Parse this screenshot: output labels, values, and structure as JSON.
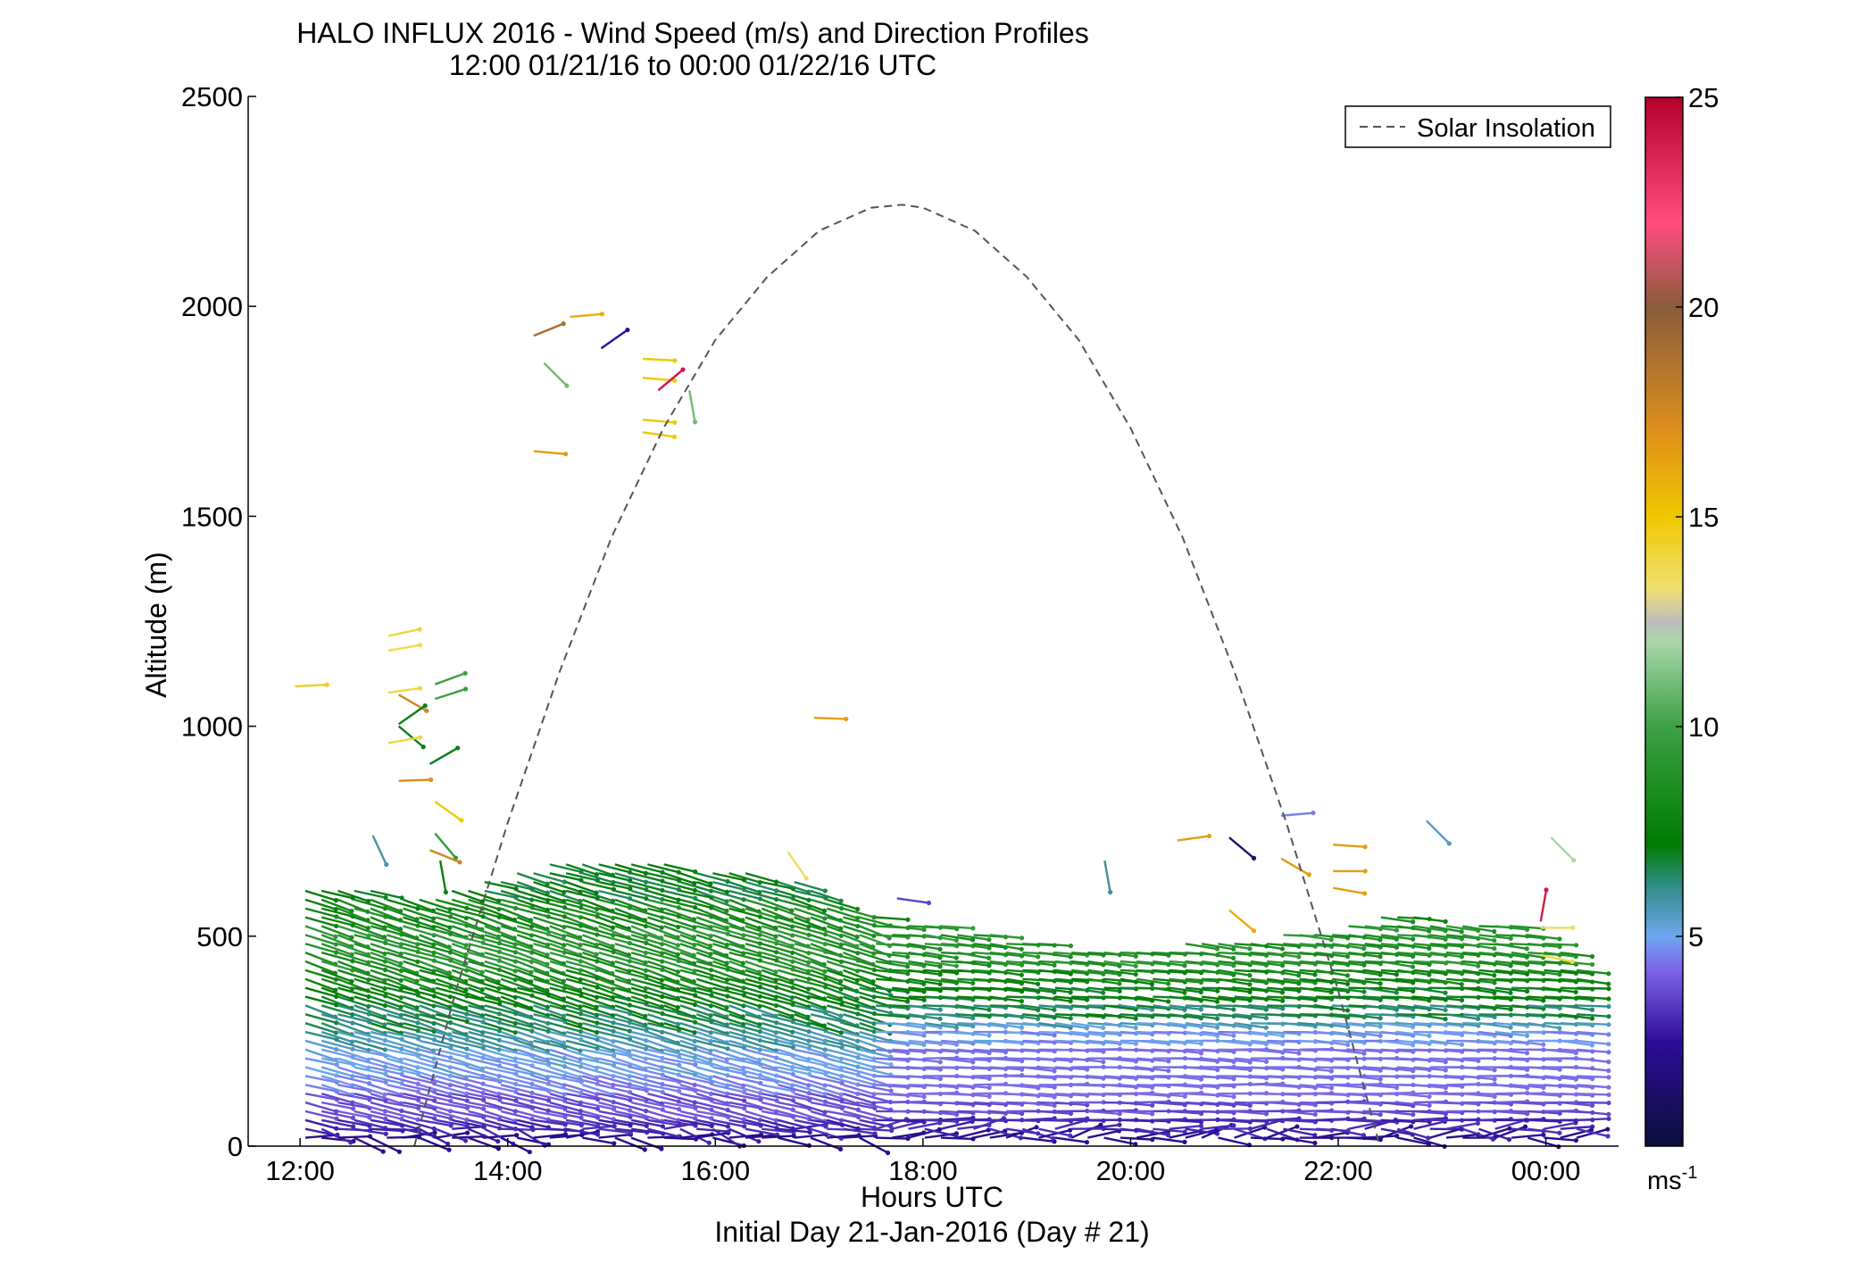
{
  "chart_data": {
    "type": "scatter",
    "title": "HALO INFLUX 2016 - Wind Speed (m/s) and Direction Profiles",
    "subtitle": "12:00 01/21/16 to 00:00 01/22/16  UTC",
    "xlabel": "Hours UTC",
    "footer": "Initial Day 21-Jan-2016 (Day # 21)",
    "ylabel": "Altitude (m)",
    "xlim": [
      11.5,
      24.7
    ],
    "ylim": [
      0,
      2500
    ],
    "x_ticks": [
      12,
      14,
      16,
      18,
      20,
      22,
      24
    ],
    "x_tick_labels": [
      "12:00",
      "14:00",
      "16:00",
      "18:00",
      "20:00",
      "22:00",
      "00:00"
    ],
    "y_ticks": [
      0,
      500,
      1000,
      1500,
      2000,
      2500
    ],
    "y_tick_labels": [
      "0",
      "500",
      "1000",
      "1500",
      "2000",
      "2500"
    ],
    "legend": {
      "label": "Solar Insolation",
      "placement": "top-right",
      "style": "dashed",
      "color": "#555555"
    },
    "colorbar": {
      "min": 0,
      "max": 25,
      "ticks": [
        5,
        10,
        15,
        20,
        25
      ],
      "tick_labels": [
        "5",
        "10",
        "15",
        "20",
        "25"
      ],
      "unit": "ms",
      "unit_exponent": "-1",
      "stops": [
        [
          0,
          "#0a0f3a"
        ],
        [
          2.5,
          "#2f0d9a"
        ],
        [
          4.2,
          "#7d64e8"
        ],
        [
          5.0,
          "#6ea6f0"
        ],
        [
          6.2,
          "#2f8e86"
        ],
        [
          7.2,
          "#007c00"
        ],
        [
          10.0,
          "#3ca046"
        ],
        [
          12.0,
          "#a8d6a8"
        ],
        [
          12.5,
          "#bdbdbd"
        ],
        [
          13.3,
          "#f0e070"
        ],
        [
          15.0,
          "#f0c800"
        ],
        [
          17.0,
          "#e0901a"
        ],
        [
          20.0,
          "#8a5c3c"
        ],
        [
          22.0,
          "#ff4d7f"
        ],
        [
          25.0,
          "#b5002a"
        ]
      ]
    },
    "solar_insolation_curve": {
      "x": [
        13.1,
        13.5,
        14.0,
        14.5,
        15.0,
        15.5,
        16.0,
        16.5,
        17.0,
        17.5,
        17.8,
        18.0,
        18.5,
        19.0,
        19.5,
        20.0,
        20.5,
        21.0,
        21.5,
        22.0,
        22.4
      ],
      "y": [
        0,
        370,
        770,
        1130,
        1450,
        1710,
        1920,
        2070,
        2180,
        2235,
        2242,
        2235,
        2180,
        2070,
        1920,
        1710,
        1450,
        1130,
        770,
        370,
        0
      ]
    },
    "boundary_layer_top": {
      "x": [
        12.1,
        12.7,
        13.3,
        13.8,
        14.3,
        14.8,
        15.3,
        15.8,
        16.3,
        16.8,
        17.1,
        17.4,
        17.8,
        18.3,
        18.8,
        19.3,
        19.8,
        20.3,
        20.8,
        21.3,
        21.8,
        22.2,
        22.6,
        23.1,
        23.6,
        24.1,
        24.4
      ],
      "y": [
        620,
        610,
        600,
        640,
        670,
        690,
        680,
        660,
        650,
        630,
        600,
        560,
        540,
        520,
        500,
        480,
        470,
        480,
        490,
        500,
        510,
        540,
        550,
        540,
        530,
        490,
        400
      ]
    },
    "direction_profile": [
      {
        "z": 20,
        "speed": 2.2,
        "angle": 10
      },
      {
        "z": 60,
        "speed": 3.0,
        "angle": 12
      },
      {
        "z": 110,
        "speed": 3.8,
        "angle": 14
      },
      {
        "z": 160,
        "speed": 4.5,
        "angle": 14
      },
      {
        "z": 210,
        "speed": 5.0,
        "angle": 15
      },
      {
        "z": 260,
        "speed": 5.8,
        "angle": 16
      },
      {
        "z": 310,
        "speed": 6.6,
        "angle": 17
      },
      {
        "z": 360,
        "speed": 7.3,
        "angle": 17
      },
      {
        "z": 410,
        "speed": 8.0,
        "angle": 18
      },
      {
        "z": 460,
        "speed": 8.8,
        "angle": 18
      },
      {
        "z": 510,
        "speed": 9.0,
        "angle": 18
      },
      {
        "z": 560,
        "speed": 8.2,
        "angle": 18
      },
      {
        "z": 610,
        "speed": 7.0,
        "angle": 16
      }
    ],
    "scattered_vectors": [
      {
        "x": 11.95,
        "z": 1095,
        "speed": 14.5,
        "angle": -3
      },
      {
        "x": 12.85,
        "z": 1215,
        "speed": 14.0,
        "angle": -12
      },
      {
        "x": 12.85,
        "z": 1180,
        "speed": 13.8,
        "angle": -10
      },
      {
        "x": 12.85,
        "z": 1080,
        "speed": 14.0,
        "angle": -8
      },
      {
        "x": 12.95,
        "z": 1075,
        "speed": 17.5,
        "angle": 30
      },
      {
        "x": 13.3,
        "z": 1100,
        "speed": 10.0,
        "angle": -20
      },
      {
        "x": 13.3,
        "z": 1065,
        "speed": 10.0,
        "angle": -18
      },
      {
        "x": 12.95,
        "z": 1005,
        "speed": 7.0,
        "angle": -35
      },
      {
        "x": 12.95,
        "z": 1000,
        "speed": 7.0,
        "angle": 40
      },
      {
        "x": 12.85,
        "z": 960,
        "speed": 14.0,
        "angle": -10
      },
      {
        "x": 13.25,
        "z": 910,
        "speed": 7.0,
        "angle": -30
      },
      {
        "x": 12.95,
        "z": 870,
        "speed": 17.0,
        "angle": -2
      },
      {
        "x": 13.3,
        "z": 820,
        "speed": 15.0,
        "angle": 35
      },
      {
        "x": 13.3,
        "z": 745,
        "speed": 9.5,
        "angle": 50
      },
      {
        "x": 13.25,
        "z": 705,
        "speed": 17.5,
        "angle": 22
      },
      {
        "x": 13.35,
        "z": 680,
        "speed": 7.5,
        "angle": 80
      },
      {
        "x": 12.7,
        "z": 740,
        "speed": 5.8,
        "angle": 65
      },
      {
        "x": 14.25,
        "z": 1930,
        "speed": 19.0,
        "angle": -22
      },
      {
        "x": 14.6,
        "z": 1975,
        "speed": 16.0,
        "angle": -5
      },
      {
        "x": 14.9,
        "z": 1900,
        "speed": 2.5,
        "angle": -35
      },
      {
        "x": 14.35,
        "z": 1865,
        "speed": 11.0,
        "angle": 45
      },
      {
        "x": 15.3,
        "z": 1875,
        "speed": 15.0,
        "angle": 3
      },
      {
        "x": 15.3,
        "z": 1830,
        "speed": 15.0,
        "angle": 5
      },
      {
        "x": 15.45,
        "z": 1800,
        "speed": 24.0,
        "angle": -40
      },
      {
        "x": 15.3,
        "z": 1730,
        "speed": 15.0,
        "angle": 5
      },
      {
        "x": 15.3,
        "z": 1700,
        "speed": 15.0,
        "angle": 8
      },
      {
        "x": 14.25,
        "z": 1655,
        "speed": 16.5,
        "angle": 5
      },
      {
        "x": 15.75,
        "z": 1800,
        "speed": 11.0,
        "angle": 80
      },
      {
        "x": 16.95,
        "z": 1020,
        "speed": 16.5,
        "angle": 2
      },
      {
        "x": 16.7,
        "z": 700,
        "speed": 13.5,
        "angle": 55
      },
      {
        "x": 17.75,
        "z": 590,
        "speed": 3.5,
        "angle": 8
      },
      {
        "x": 19.75,
        "z": 680,
        "speed": 6.0,
        "angle": 80
      },
      {
        "x": 20.45,
        "z": 728,
        "speed": 16.5,
        "angle": -8
      },
      {
        "x": 20.95,
        "z": 735,
        "speed": 1.2,
        "angle": 40
      },
      {
        "x": 20.95,
        "z": 562,
        "speed": 16.0,
        "angle": 40
      },
      {
        "x": 21.45,
        "z": 787,
        "speed": 4.5,
        "angle": -5
      },
      {
        "x": 21.45,
        "z": 685,
        "speed": 16.5,
        "angle": 30
      },
      {
        "x": 21.95,
        "z": 718,
        "speed": 16.5,
        "angle": 4
      },
      {
        "x": 21.95,
        "z": 655,
        "speed": 16.5,
        "angle": 0
      },
      {
        "x": 21.95,
        "z": 615,
        "speed": 16.5,
        "angle": 10
      },
      {
        "x": 22.85,
        "z": 775,
        "speed": 5.5,
        "angle": 45
      },
      {
        "x": 23.95,
        "z": 535,
        "speed": 24.0,
        "angle": -80
      },
      {
        "x": 23.95,
        "z": 520,
        "speed": 13.5,
        "angle": 0
      },
      {
        "x": 23.95,
        "z": 455,
        "speed": 14.0,
        "angle": 12
      },
      {
        "x": 24.05,
        "z": 735,
        "speed": 12.0,
        "angle": 45
      }
    ]
  }
}
